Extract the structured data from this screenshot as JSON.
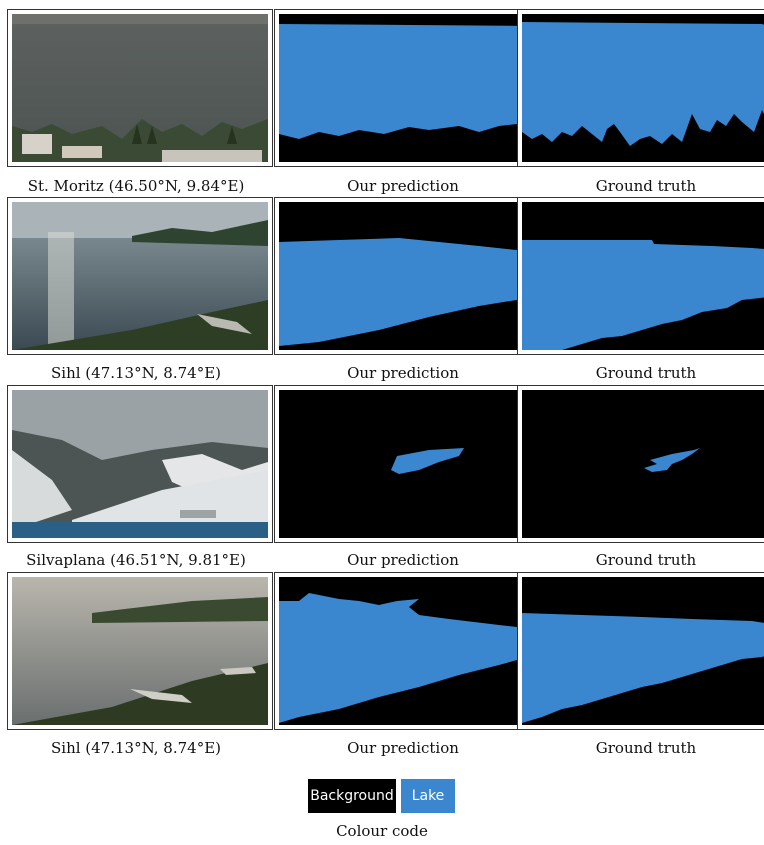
{
  "rows": [
    {
      "caption_photo": "St. Moritz (46.50°N, 9.84°E)",
      "caption_pred": "Our prediction",
      "caption_gt": "Ground truth"
    },
    {
      "caption_photo": "Sihl (47.13°N, 8.74°E)",
      "caption_pred": "Our prediction",
      "caption_gt": "Ground truth"
    },
    {
      "caption_photo": "Silvaplana (46.51°N, 9.81°E)",
      "caption_pred": "Our prediction",
      "caption_gt": "Ground truth"
    },
    {
      "caption_photo": "Sihl (47.13°N, 8.74°E)",
      "caption_pred": "Our prediction",
      "caption_gt": "Ground truth"
    }
  ],
  "legend": {
    "background_label": "Background",
    "lake_label": "Lake",
    "background_color": "#000000",
    "lake_color": "#3a87d0",
    "caption": "Colour code"
  }
}
